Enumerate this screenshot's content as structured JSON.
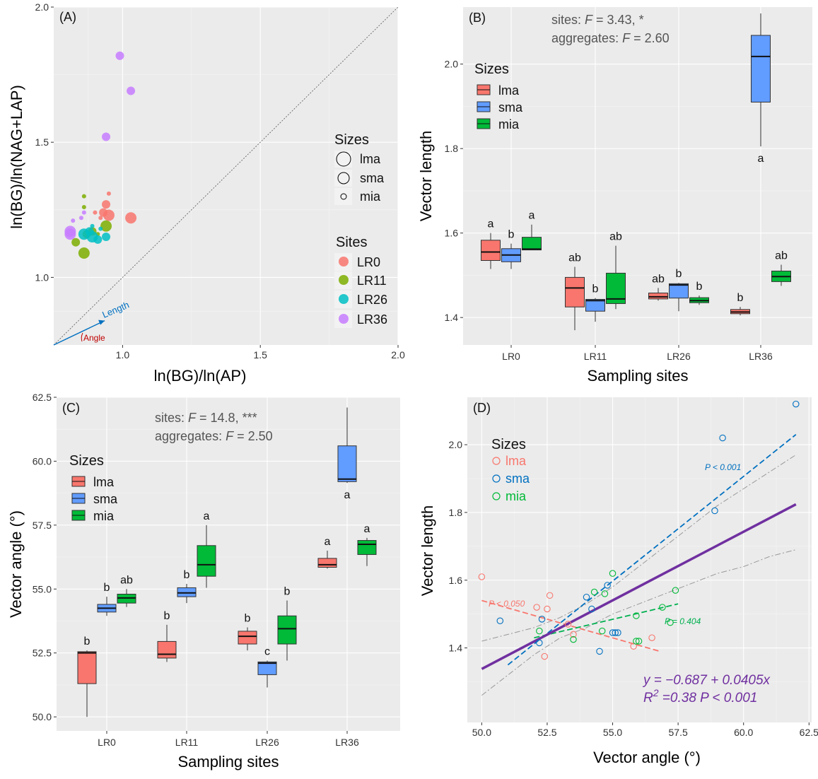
{
  "colors": {
    "lma": "#F8766D",
    "sma": "#619CFF",
    "mia": "#00BA38",
    "LR0": "#F8766D",
    "LR11": "#7CAE00",
    "LR26": "#00BFC4",
    "LR36": "#C77CFF",
    "fit": "#7030A0",
    "lma_line": "#F8766D",
    "sma_line": "#0070C0",
    "mia_line": "#00B050"
  },
  "chart_data": [
    {
      "panel": "A",
      "type": "scatter",
      "label": "(A)",
      "xlabel": "ln(BG)/ln(AP)",
      "ylabel": "ln(BG)/ln(NAG+LAP)",
      "xlim": [
        0.75,
        2.0
      ],
      "ylim": [
        0.75,
        2.0
      ],
      "xticks": [
        "1.0",
        "1.5",
        "2.0"
      ],
      "xtick_values": [
        1.0,
        1.5,
        2.0
      ],
      "yticks": [
        "1.0",
        "1.5",
        "2.0"
      ],
      "ytick_values": [
        1.0,
        1.5,
        2.0
      ],
      "grid": true,
      "reference_line": "1:1",
      "annotations": {
        "length": "Length",
        "angle": "Angle"
      },
      "legend_sizes_title": "Sizes",
      "legend_sizes": [
        "lma",
        "sma",
        "mia"
      ],
      "legend_sites_title": "Sites",
      "legend_sites": [
        "LR0",
        "LR11",
        "LR26",
        "LR36"
      ],
      "points": [
        {
          "x": 1.03,
          "y": 1.22,
          "site": "LR0",
          "size": "lma"
        },
        {
          "x": 0.95,
          "y": 1.23,
          "site": "LR0",
          "size": "lma"
        },
        {
          "x": 0.93,
          "y": 1.24,
          "site": "LR0",
          "size": "sma"
        },
        {
          "x": 0.94,
          "y": 1.27,
          "site": "LR0",
          "size": "sma"
        },
        {
          "x": 0.92,
          "y": 1.22,
          "site": "LR0",
          "size": "mia"
        },
        {
          "x": 0.95,
          "y": 1.31,
          "site": "LR0",
          "size": "mia"
        },
        {
          "x": 0.9,
          "y": 1.24,
          "site": "LR0",
          "size": "mia"
        },
        {
          "x": 0.86,
          "y": 1.09,
          "site": "LR11",
          "size": "lma"
        },
        {
          "x": 0.94,
          "y": 1.19,
          "site": "LR11",
          "size": "lma"
        },
        {
          "x": 0.89,
          "y": 1.17,
          "site": "LR11",
          "size": "sma"
        },
        {
          "x": 0.83,
          "y": 1.13,
          "site": "LR11",
          "size": "sma"
        },
        {
          "x": 0.87,
          "y": 1.16,
          "site": "LR11",
          "size": "sma"
        },
        {
          "x": 0.86,
          "y": 1.3,
          "site": "LR11",
          "size": "mia"
        },
        {
          "x": 0.86,
          "y": 1.26,
          "site": "LR11",
          "size": "mia"
        },
        {
          "x": 0.91,
          "y": 1.16,
          "site": "LR11",
          "size": "mia"
        },
        {
          "x": 0.89,
          "y": 1.15,
          "site": "LR26",
          "size": "lma"
        },
        {
          "x": 0.86,
          "y": 1.16,
          "site": "LR26",
          "size": "lma"
        },
        {
          "x": 0.91,
          "y": 1.14,
          "site": "LR26",
          "size": "sma"
        },
        {
          "x": 0.94,
          "y": 1.15,
          "site": "LR26",
          "size": "sma"
        },
        {
          "x": 0.88,
          "y": 1.17,
          "site": "LR26",
          "size": "sma"
        },
        {
          "x": 0.92,
          "y": 1.18,
          "site": "LR26",
          "size": "mia"
        },
        {
          "x": 0.89,
          "y": 1.19,
          "site": "LR26",
          "size": "mia"
        },
        {
          "x": 0.81,
          "y": 1.16,
          "site": "LR36",
          "size": "lma"
        },
        {
          "x": 0.81,
          "y": 1.17,
          "site": "LR36",
          "size": "lma"
        },
        {
          "x": 0.99,
          "y": 1.82,
          "site": "LR36",
          "size": "sma"
        },
        {
          "x": 1.03,
          "y": 1.69,
          "site": "LR36",
          "size": "sma"
        },
        {
          "x": 0.94,
          "y": 1.52,
          "site": "LR36",
          "size": "sma"
        },
        {
          "x": 0.82,
          "y": 1.21,
          "site": "LR36",
          "size": "mia"
        },
        {
          "x": 0.86,
          "y": 1.24,
          "site": "LR36",
          "size": "mia"
        },
        {
          "x": 0.85,
          "y": 1.22,
          "site": "LR36",
          "size": "mia"
        }
      ]
    },
    {
      "panel": "B",
      "type": "boxplot",
      "label": "(B)",
      "xlabel": "Sampling sites",
      "ylabel": "Vector length",
      "ylim": [
        1.335,
        2.135
      ],
      "yticks": [
        "1.4",
        "1.6",
        "1.8",
        "2.0"
      ],
      "ytick_values": [
        1.4,
        1.6,
        1.8,
        2.0
      ],
      "categories": [
        "LR0",
        "LR11",
        "LR26",
        "LR36"
      ],
      "stats": {
        "sites_prefix": "sites: ",
        "sites_F": "F",
        "sites_value": " = 3.43, *",
        "agg_prefix": "aggregates: ",
        "agg_F": "F",
        "agg_value": " = 2.60"
      },
      "legend_title": "Sizes",
      "series": [
        {
          "name": "lma",
          "boxes": [
            {
              "min": 1.515,
              "q1": 1.535,
              "median": 1.555,
              "q3": 1.583,
              "max": 1.6,
              "sig": "a"
            },
            {
              "min": 1.37,
              "q1": 1.425,
              "median": 1.47,
              "q3": 1.495,
              "max": 1.52,
              "sig": "ab"
            },
            {
              "min": 1.44,
              "q1": 1.444,
              "median": 1.449,
              "q3": 1.458,
              "max": 1.47,
              "sig": "ab"
            },
            {
              "min": 1.405,
              "q1": 1.409,
              "median": 1.413,
              "q3": 1.419,
              "max": 1.425,
              "sig": "b"
            }
          ]
        },
        {
          "name": "sma",
          "boxes": [
            {
              "min": 1.515,
              "q1": 1.532,
              "median": 1.548,
              "q3": 1.563,
              "max": 1.575,
              "sig": "b"
            },
            {
              "min": 1.39,
              "q1": 1.415,
              "median": 1.44,
              "q3": 1.443,
              "max": 1.446,
              "sig": "b"
            },
            {
              "min": 1.415,
              "q1": 1.446,
              "median": 1.477,
              "q3": 1.48,
              "max": 1.482,
              "sig": "b"
            },
            {
              "min": 1.805,
              "q1": 1.91,
              "median": 2.018,
              "q3": 2.068,
              "max": 2.12,
              "sig": "a"
            }
          ]
        },
        {
          "name": "mia",
          "boxes": [
            {
              "min": 1.56,
              "q1": 1.56,
              "median": 1.562,
              "q3": 1.59,
              "max": 1.62,
              "sig": "a"
            },
            {
              "min": 1.42,
              "q1": 1.433,
              "median": 1.444,
              "q3": 1.505,
              "max": 1.57,
              "sig": "ab"
            },
            {
              "min": 1.43,
              "q1": 1.435,
              "median": 1.44,
              "q3": 1.447,
              "max": 1.452,
              "sig": "b"
            },
            {
              "min": 1.475,
              "q1": 1.485,
              "median": 1.497,
              "q3": 1.51,
              "max": 1.525,
              "sig": "ab"
            }
          ]
        }
      ]
    },
    {
      "panel": "C",
      "type": "boxplot",
      "label": "(C)",
      "xlabel": "Sampling sites",
      "ylabel": "Vector angle (°)",
      "ylim": [
        49.45,
        62.5
      ],
      "yticks": [
        "50.0",
        "52.5",
        "55.0",
        "57.5",
        "60.0",
        "62.5"
      ],
      "ytick_values": [
        50.0,
        52.5,
        55.0,
        57.5,
        60.0,
        62.5
      ],
      "categories": [
        "LR0",
        "LR11",
        "LR26",
        "LR36"
      ],
      "stats": {
        "sites_prefix": "sites: ",
        "sites_F": "F",
        "sites_value": " = 14.8, ***",
        "agg_prefix": "aggregates: ",
        "agg_F": "F",
        "agg_value": " = 2.50"
      },
      "legend_title": "Sizes",
      "series": [
        {
          "name": "lma",
          "boxes": [
            {
              "min": 50.0,
              "q1": 51.3,
              "median": 52.5,
              "q3": 52.55,
              "max": 52.6,
              "sig": "b"
            },
            {
              "min": 52.15,
              "q1": 52.3,
              "median": 52.45,
              "q3": 52.95,
              "max": 53.6,
              "sig": "b"
            },
            {
              "min": 52.6,
              "q1": 52.85,
              "median": 53.15,
              "q3": 53.35,
              "max": 53.5,
              "sig": "b"
            },
            {
              "min": 55.8,
              "q1": 55.85,
              "median": 55.95,
              "q3": 56.2,
              "max": 56.5,
              "sig": "a"
            }
          ]
        },
        {
          "name": "sma",
          "boxes": [
            {
              "min": 53.95,
              "q1": 54.1,
              "median": 54.25,
              "q3": 54.4,
              "max": 54.7,
              "sig": "b"
            },
            {
              "min": 54.45,
              "q1": 54.7,
              "median": 54.85,
              "q3": 55.05,
              "max": 55.2,
              "sig": "b"
            },
            {
              "min": 51.15,
              "q1": 51.65,
              "median": 52.1,
              "q3": 52.15,
              "max": 52.2,
              "sig": "c"
            },
            {
              "min": 59.15,
              "q1": 59.2,
              "median": 59.3,
              "q3": 60.6,
              "max": 62.1,
              "sig": "a"
            }
          ]
        },
        {
          "name": "mia",
          "boxes": [
            {
              "min": 54.3,
              "q1": 54.45,
              "median": 54.65,
              "q3": 54.8,
              "max": 55.0,
              "sig": "ab"
            },
            {
              "min": 55.05,
              "q1": 55.5,
              "median": 55.95,
              "q3": 56.7,
              "max": 57.5,
              "sig": "a"
            },
            {
              "min": 52.2,
              "q1": 52.85,
              "median": 53.45,
              "q3": 53.95,
              "max": 54.55,
              "sig": "b"
            },
            {
              "min": 55.9,
              "q1": 56.35,
              "median": 56.75,
              "q3": 56.9,
              "max": 57.0,
              "sig": "a"
            }
          ]
        }
      ]
    },
    {
      "panel": "D",
      "type": "scatter",
      "label": "(D)",
      "xlabel": "Vector angle (°)",
      "ylabel": "Vector length",
      "xlim": [
        49.45,
        62.6
      ],
      "ylim": [
        1.18,
        2.14
      ],
      "xticks": [
        "50.0",
        "52.5",
        "55.0",
        "57.5",
        "60.0",
        "62.5"
      ],
      "xtick_values": [
        50.0,
        52.5,
        55.0,
        57.5,
        60.0,
        62.5
      ],
      "yticks": [
        "1.4",
        "1.6",
        "1.8",
        "2.0"
      ],
      "ytick_values": [
        1.4,
        1.6,
        1.8,
        2.0
      ],
      "legend_title": "Sizes",
      "legend": [
        "lma",
        "sma",
        "mia"
      ],
      "p_labels": {
        "sma": "P < 0.001",
        "lma": "P < 0.050",
        "mia": "P = 0.404"
      },
      "equation": "y = −0.687 + 0.0405x",
      "r2": {
        "R": "R",
        "sup": "2",
        "value": " =0.38  ",
        "p": "P",
        "p_value": " < 0.001"
      },
      "fits": {
        "overall": {
          "x": [
            50.0,
            62.0
          ],
          "y": [
            1.338,
            1.824
          ]
        },
        "ci_upper": [
          [
            50.0,
            1.42
          ],
          [
            51.0,
            1.44
          ],
          [
            52.0,
            1.46
          ],
          [
            53.0,
            1.49
          ],
          [
            54.0,
            1.53
          ],
          [
            55.0,
            1.58
          ],
          [
            56.0,
            1.64
          ],
          [
            57.0,
            1.7
          ],
          [
            58.0,
            1.76
          ],
          [
            59.0,
            1.82
          ],
          [
            60.0,
            1.87
          ],
          [
            61.0,
            1.92
          ],
          [
            62.0,
            1.97
          ]
        ],
        "ci_lower": [
          [
            50.0,
            1.26
          ],
          [
            51.0,
            1.32
          ],
          [
            52.0,
            1.38
          ],
          [
            53.0,
            1.43
          ],
          [
            54.0,
            1.46
          ],
          [
            55.0,
            1.5
          ],
          [
            56.0,
            1.53
          ],
          [
            57.0,
            1.56
          ],
          [
            58.0,
            1.59
          ],
          [
            59.0,
            1.62
          ],
          [
            60.0,
            1.64
          ],
          [
            61.0,
            1.67
          ],
          [
            62.0,
            1.69
          ]
        ],
        "sma": {
          "x": [
            51.0,
            62.0
          ],
          "y": [
            1.35,
            2.03
          ]
        },
        "lma": {
          "x": [
            50.0,
            56.8
          ],
          "y": [
            1.54,
            1.39
          ]
        },
        "mia": {
          "x": [
            52.0,
            57.5
          ],
          "y": [
            1.43,
            1.53
          ]
        }
      },
      "points": [
        {
          "x": 50.0,
          "y": 1.61,
          "size": "lma"
        },
        {
          "x": 52.1,
          "y": 1.52,
          "size": "lma"
        },
        {
          "x": 52.4,
          "y": 1.375,
          "size": "lma"
        },
        {
          "x": 52.5,
          "y": 1.515,
          "size": "lma"
        },
        {
          "x": 52.6,
          "y": 1.555,
          "size": "lma"
        },
        {
          "x": 53.3,
          "y": 1.47,
          "size": "lma"
        },
        {
          "x": 53.5,
          "y": 1.44,
          "size": "lma"
        },
        {
          "x": 55.8,
          "y": 1.405,
          "size": "lma"
        },
        {
          "x": 56.5,
          "y": 1.43,
          "size": "lma"
        },
        {
          "x": 50.7,
          "y": 1.48,
          "size": "sma"
        },
        {
          "x": 52.2,
          "y": 1.415,
          "size": "sma"
        },
        {
          "x": 52.3,
          "y": 1.485,
          "size": "sma"
        },
        {
          "x": 54.0,
          "y": 1.55,
          "size": "sma"
        },
        {
          "x": 54.2,
          "y": 1.515,
          "size": "sma"
        },
        {
          "x": 54.5,
          "y": 1.39,
          "size": "sma"
        },
        {
          "x": 54.8,
          "y": 1.585,
          "size": "sma"
        },
        {
          "x": 55.0,
          "y": 1.445,
          "size": "sma"
        },
        {
          "x": 55.1,
          "y": 1.445,
          "size": "sma"
        },
        {
          "x": 55.2,
          "y": 1.445,
          "size": "sma"
        },
        {
          "x": 58.9,
          "y": 1.805,
          "size": "sma"
        },
        {
          "x": 59.2,
          "y": 2.02,
          "size": "sma"
        },
        {
          "x": 62.0,
          "y": 2.12,
          "size": "sma"
        },
        {
          "x": 52.2,
          "y": 1.45,
          "size": "mia"
        },
        {
          "x": 53.5,
          "y": 1.425,
          "size": "mia"
        },
        {
          "x": 54.3,
          "y": 1.565,
          "size": "mia"
        },
        {
          "x": 54.6,
          "y": 1.45,
          "size": "mia"
        },
        {
          "x": 54.7,
          "y": 1.56,
          "size": "mia"
        },
        {
          "x": 55.0,
          "y": 1.62,
          "size": "mia"
        },
        {
          "x": 55.9,
          "y": 1.495,
          "size": "mia"
        },
        {
          "x": 55.9,
          "y": 1.42,
          "size": "mia"
        },
        {
          "x": 56.0,
          "y": 1.42,
          "size": "mia"
        },
        {
          "x": 56.9,
          "y": 1.52,
          "size": "mia"
        },
        {
          "x": 57.2,
          "y": 1.475,
          "size": "mia"
        },
        {
          "x": 57.4,
          "y": 1.57,
          "size": "mia"
        }
      ]
    }
  ]
}
